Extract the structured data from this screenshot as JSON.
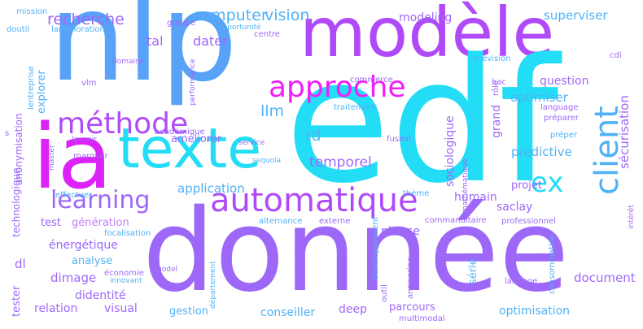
{
  "palette": {
    "cyan": "#22ddf5",
    "sky": "#4fb2f7",
    "blue": "#58a2f8",
    "violet": "#9d68f8",
    "purple": "#b04af9",
    "magenta": "#dc22f8",
    "pink": "#f21ef9",
    "lilac": "#c07cf8"
  },
  "words": [
    {
      "text": "nlp",
      "color": "blue"
    },
    {
      "text": "modèle",
      "color": "purple"
    },
    {
      "text": "edf",
      "color": "cyan"
    },
    {
      "text": "donnée",
      "color": "violet"
    },
    {
      "text": "ia",
      "color": "magenta"
    },
    {
      "text": "texte",
      "color": "cyan"
    },
    {
      "text": "approche",
      "color": "pink"
    },
    {
      "text": "méthode",
      "color": "purple"
    },
    {
      "text": "learning",
      "color": "violet"
    },
    {
      "text": "automatique",
      "color": "purple"
    },
    {
      "text": "client",
      "color": "sky"
    },
    {
      "text": "ex",
      "color": "cyan"
    },
    {
      "text": "computer",
      "color": "sky"
    },
    {
      "text": "vision",
      "color": "sky"
    },
    {
      "text": "recherche",
      "color": "violet"
    },
    {
      "text": "tal",
      "color": "violet"
    },
    {
      "text": "dater",
      "color": "violet"
    },
    {
      "text": "llm",
      "color": "sky"
    },
    {
      "text": "rd",
      "color": "sky"
    },
    {
      "text": "améliorer",
      "color": "violet"
    },
    {
      "text": "temporel",
      "color": "violet"
    },
    {
      "text": "application",
      "color": "sky"
    },
    {
      "text": "test",
      "color": "violet"
    },
    {
      "text": "génération",
      "color": "lilac"
    },
    {
      "text": "énergétique",
      "color": "violet"
    },
    {
      "text": "analyse",
      "color": "sky"
    },
    {
      "text": "dimage",
      "color": "violet"
    },
    {
      "text": "didentité",
      "color": "violet"
    },
    {
      "text": "relation",
      "color": "violet"
    },
    {
      "text": "visual",
      "color": "violet"
    },
    {
      "text": "gestion",
      "color": "sky"
    },
    {
      "text": "conseiller",
      "color": "sky"
    },
    {
      "text": "deep",
      "color": "violet"
    },
    {
      "text": "parcours",
      "color": "violet"
    },
    {
      "text": "optimisation",
      "color": "sky"
    },
    {
      "text": "document",
      "color": "violet"
    },
    {
      "text": "série",
      "color": "sky"
    },
    {
      "text": "dedf",
      "color": "violet"
    },
    {
      "text": "phrase",
      "color": "violet"
    },
    {
      "text": "humain",
      "color": "violet"
    },
    {
      "text": "saclay",
      "color": "violet"
    },
    {
      "text": "projet",
      "color": "violet"
    },
    {
      "text": "predictive",
      "color": "sky"
    },
    {
      "text": "optimiser",
      "color": "sky"
    },
    {
      "text": "question",
      "color": "violet"
    },
    {
      "text": "modeling",
      "color": "violet"
    },
    {
      "text": "superviser",
      "color": "sky"
    },
    {
      "text": "dl",
      "color": "violet"
    },
    {
      "text": "mission",
      "color": "sky"
    },
    {
      "text": "doutil",
      "color": "sky"
    },
    {
      "text": "lamélioration",
      "color": "sky"
    },
    {
      "text": "groupe",
      "color": "violet"
    },
    {
      "text": "opportunité",
      "color": "sky"
    },
    {
      "text": "centre",
      "color": "violet"
    },
    {
      "text": "prévision",
      "color": "sky"
    },
    {
      "text": "cdi",
      "color": "violet"
    },
    {
      "text": "domaine",
      "color": "violet"
    },
    {
      "text": "vlm",
      "color": "violet"
    },
    {
      "text": "commerce",
      "color": "violet"
    },
    {
      "text": "traitement",
      "color": "sky"
    },
    {
      "text": "bac",
      "color": "violet"
    },
    {
      "text": "language",
      "color": "violet"
    },
    {
      "text": "préparer",
      "color": "violet"
    },
    {
      "text": "préper",
      "color": "sky"
    },
    {
      "text": "lavenir",
      "color": "violet"
    },
    {
      "text": "académique",
      "color": "violet"
    },
    {
      "text": "service",
      "color": "violet"
    },
    {
      "text": "fusion",
      "color": "violet"
    },
    {
      "text": "sequoia",
      "color": "sky"
    },
    {
      "text": "marquer",
      "color": "violet"
    },
    {
      "text": "effectuer",
      "color": "sky"
    },
    {
      "text": "thème",
      "color": "sky"
    },
    {
      "text": "focalisation",
      "color": "sky"
    },
    {
      "text": "alternance",
      "color": "sky"
    },
    {
      "text": "externe",
      "color": "violet"
    },
    {
      "text": "commanditaire",
      "color": "violet"
    },
    {
      "text": "professionnel",
      "color": "violet"
    },
    {
      "text": "model",
      "color": "violet"
    },
    {
      "text": "économie",
      "color": "violet"
    },
    {
      "text": "innovant",
      "color": "sky"
    },
    {
      "text": "langage",
      "color": "violet"
    },
    {
      "text": "multimodal",
      "color": "violet"
    },
    {
      "text": "explorer",
      "color": "sky"
    },
    {
      "text": "lentreprise",
      "color": "sky"
    },
    {
      "text": "anonymisation",
      "color": "violet"
    },
    {
      "text": "technologique",
      "color": "violet"
    },
    {
      "text": "tester",
      "color": "violet"
    },
    {
      "text": "performance",
      "color": "violet"
    },
    {
      "text": "sociologique",
      "color": "violet"
    },
    {
      "text": "grand",
      "color": "violet"
    },
    {
      "text": "rôle",
      "color": "violet"
    },
    {
      "text": "sécurisation",
      "color": "violet"
    },
    {
      "text": "intérêt",
      "color": "violet"
    },
    {
      "text": "développement",
      "color": "sky"
    },
    {
      "text": "outil",
      "color": "violet"
    },
    {
      "text": "answering",
      "color": "violet"
    },
    {
      "text": "consommation",
      "color": "sky"
    },
    {
      "text": "mathématique",
      "color": "violet"
    },
    {
      "text": "département",
      "color": "sky"
    },
    {
      "text": "master",
      "color": "violet"
    },
    {
      "text": "s",
      "color": "violet"
    }
  ]
}
